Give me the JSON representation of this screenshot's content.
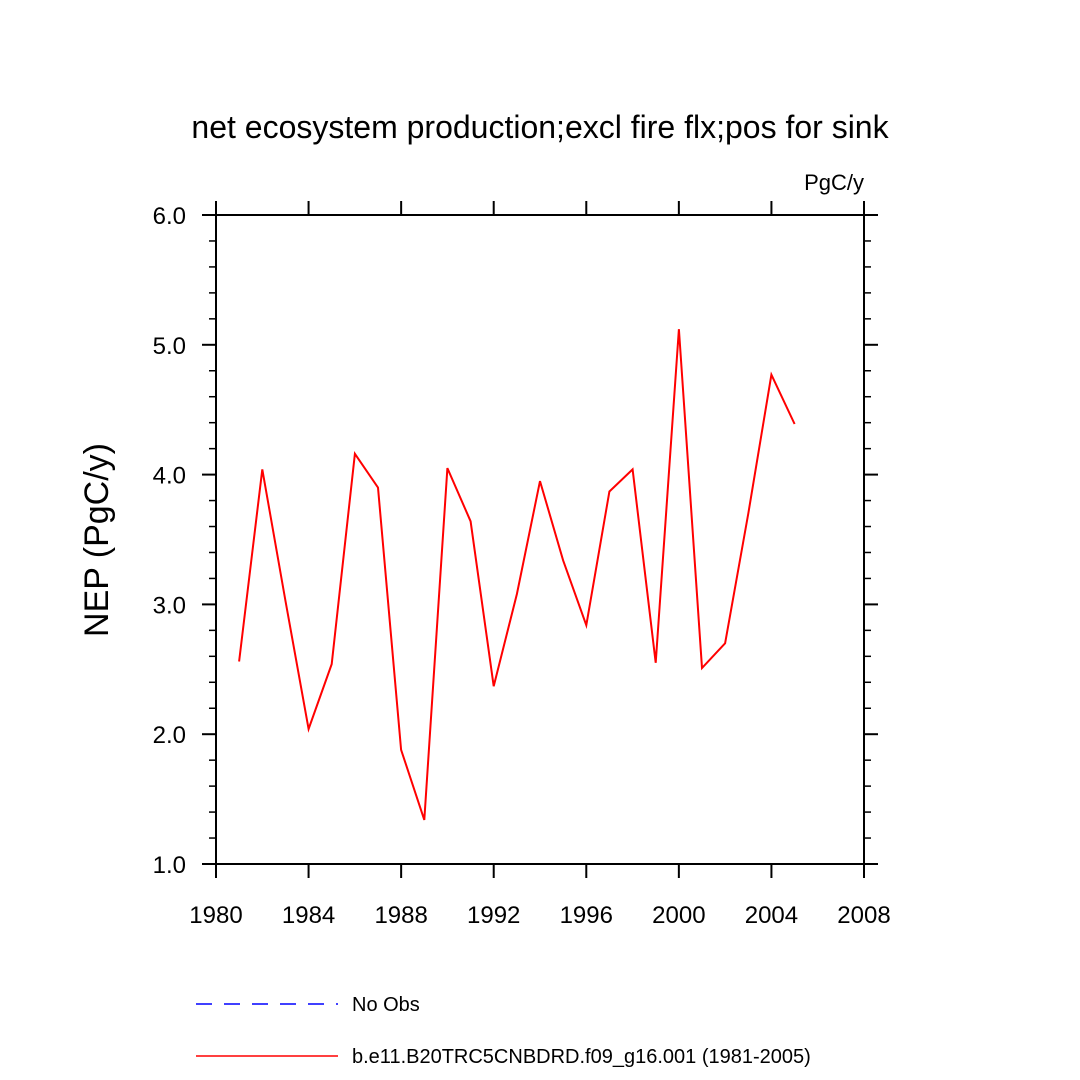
{
  "chart_data": {
    "type": "line",
    "title": "net ecosystem production;excl fire flx;pos for sink",
    "units_label": "PgC/y",
    "ylabel": "NEP  (PgC/y)",
    "xlabel": "",
    "xlim": [
      1980,
      2008
    ],
    "ylim": [
      1.0,
      6.0
    ],
    "x_ticks": [
      1980,
      1984,
      1988,
      1992,
      1996,
      2000,
      2004,
      2008
    ],
    "y_ticks": [
      1.0,
      2.0,
      3.0,
      4.0,
      5.0,
      6.0
    ],
    "y_tick_labels": [
      "1.0",
      "2.0",
      "3.0",
      "4.0",
      "5.0",
      "6.0"
    ],
    "grid": false,
    "series": [
      {
        "name": "b.e11.B20TRC5CNBDRD.f09_g16.001 (1981-2005)",
        "color": "#ff0000",
        "style": "solid",
        "x": [
          1981,
          1982,
          1983,
          1984,
          1985,
          1986,
          1987,
          1988,
          1989,
          1990,
          1991,
          1992,
          1993,
          1994,
          1995,
          1996,
          1997,
          1998,
          1999,
          2000,
          2001,
          2002,
          2003,
          2004,
          2005
        ],
        "values": [
          2.56,
          4.04,
          3.03,
          2.04,
          2.54,
          4.16,
          3.9,
          1.88,
          1.34,
          4.05,
          3.64,
          2.37,
          3.08,
          3.95,
          3.34,
          2.84,
          3.87,
          4.04,
          2.55,
          5.12,
          2.51,
          2.7,
          3.7,
          4.77,
          4.39
        ]
      }
    ],
    "legend": {
      "position": "bottom-left",
      "entries": [
        {
          "label": "No Obs",
          "color": "#0000ff",
          "style": "dashed"
        },
        {
          "label": "b.e11.B20TRC5CNBDRD.f09_g16.001 (1981-2005)",
          "color": "#ff0000",
          "style": "solid"
        }
      ]
    }
  }
}
